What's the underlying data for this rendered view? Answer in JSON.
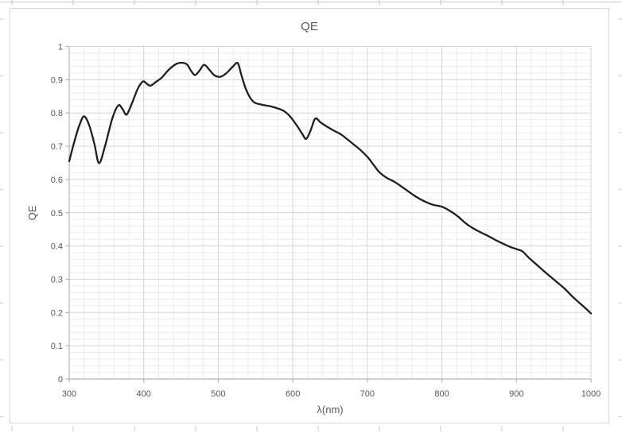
{
  "chart_data": {
    "type": "line",
    "title": "QE",
    "xlabel": "λ(nm)",
    "ylabel": "QE",
    "xlim": [
      300,
      1000
    ],
    "ylim": [
      0,
      1
    ],
    "x_ticks": [
      300,
      400,
      500,
      600,
      700,
      800,
      900,
      1000
    ],
    "x_tick_labels": [
      "300",
      "400",
      "500",
      "600",
      "700",
      "800",
      "900",
      "1000"
    ],
    "y_ticks": [
      0,
      0.1,
      0.2,
      0.3,
      0.4,
      0.5,
      0.6,
      0.7,
      0.8,
      0.9,
      1
    ],
    "y_tick_labels": [
      "0",
      "0.1",
      "0.2",
      "0.3",
      "0.4",
      "0.5",
      "0.6",
      "0.7",
      "0.8",
      "0.9",
      "1"
    ],
    "x_minor_step": 20,
    "y_minor_step": 0.02,
    "grid": "major+minor",
    "legend": "none",
    "series": [
      {
        "name": "QE",
        "color": "#1f1f1f",
        "points": [
          [
            300,
            0.655
          ],
          [
            307,
            0.715
          ],
          [
            314,
            0.765
          ],
          [
            320,
            0.79
          ],
          [
            327,
            0.762
          ],
          [
            334,
            0.705
          ],
          [
            340,
            0.649
          ],
          [
            348,
            0.7
          ],
          [
            358,
            0.785
          ],
          [
            366,
            0.823
          ],
          [
            372,
            0.81
          ],
          [
            377,
            0.795
          ],
          [
            384,
            0.828
          ],
          [
            392,
            0.873
          ],
          [
            399,
            0.895
          ],
          [
            404,
            0.888
          ],
          [
            409,
            0.882
          ],
          [
            416,
            0.893
          ],
          [
            424,
            0.906
          ],
          [
            434,
            0.931
          ],
          [
            444,
            0.948
          ],
          [
            451,
            0.951
          ],
          [
            458,
            0.946
          ],
          [
            464,
            0.925
          ],
          [
            469,
            0.914
          ],
          [
            475,
            0.928
          ],
          [
            481,
            0.945
          ],
          [
            488,
            0.93
          ],
          [
            495,
            0.913
          ],
          [
            503,
            0.909
          ],
          [
            511,
            0.92
          ],
          [
            519,
            0.938
          ],
          [
            526,
            0.95
          ],
          [
            531,
            0.914
          ],
          [
            537,
            0.872
          ],
          [
            543,
            0.845
          ],
          [
            549,
            0.831
          ],
          [
            558,
            0.825
          ],
          [
            568,
            0.821
          ],
          [
            578,
            0.815
          ],
          [
            588,
            0.806
          ],
          [
            597,
            0.788
          ],
          [
            606,
            0.76
          ],
          [
            613,
            0.736
          ],
          [
            618,
            0.722
          ],
          [
            624,
            0.748
          ],
          [
            630,
            0.783
          ],
          [
            637,
            0.772
          ],
          [
            645,
            0.76
          ],
          [
            655,
            0.747
          ],
          [
            665,
            0.735
          ],
          [
            678,
            0.712
          ],
          [
            690,
            0.69
          ],
          [
            700,
            0.668
          ],
          [
            708,
            0.645
          ],
          [
            716,
            0.622
          ],
          [
            726,
            0.605
          ],
          [
            737,
            0.592
          ],
          [
            750,
            0.572
          ],
          [
            762,
            0.553
          ],
          [
            775,
            0.536
          ],
          [
            788,
            0.524
          ],
          [
            800,
            0.518
          ],
          [
            812,
            0.504
          ],
          [
            822,
            0.488
          ],
          [
            832,
            0.468
          ],
          [
            842,
            0.453
          ],
          [
            852,
            0.441
          ],
          [
            862,
            0.43
          ],
          [
            872,
            0.418
          ],
          [
            882,
            0.407
          ],
          [
            892,
            0.397
          ],
          [
            901,
            0.39
          ],
          [
            908,
            0.384
          ],
          [
            916,
            0.366
          ],
          [
            925,
            0.348
          ],
          [
            935,
            0.328
          ],
          [
            945,
            0.309
          ],
          [
            955,
            0.29
          ],
          [
            965,
            0.271
          ],
          [
            975,
            0.248
          ],
          [
            985,
            0.228
          ],
          [
            993,
            0.212
          ],
          [
            1000,
            0.197
          ]
        ]
      }
    ]
  },
  "colors": {
    "curve": "#1f1f1f",
    "label_text": "#595959",
    "major_grid": "#d6d6d6",
    "minor_grid": "#ebebeb",
    "axis_line": "#b5b5b5",
    "chart_border": "#d9d9d9",
    "sheet_marks": "#d2d2d2"
  }
}
